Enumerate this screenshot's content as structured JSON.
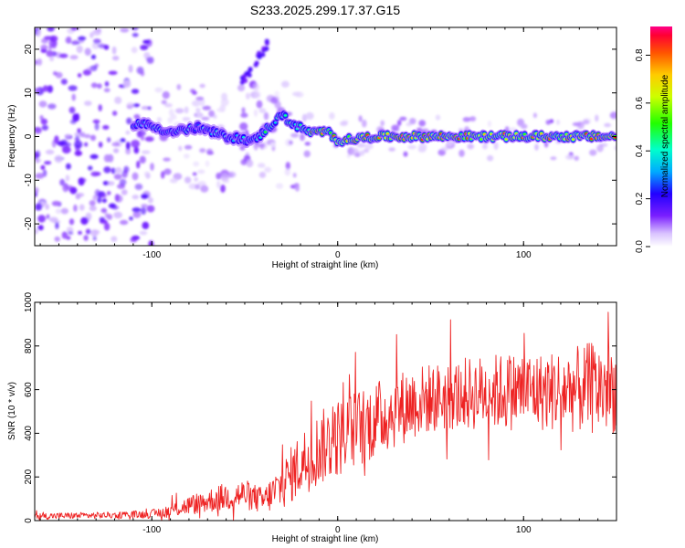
{
  "chart_data": [
    {
      "type": "heatmap",
      "title": "S233.2025.299.17.37.G15",
      "xlabel": "Height of straight line (km)",
      "ylabel": "Frequency (Hz)",
      "xlim": [
        -163,
        150
      ],
      "ylim": [
        -25,
        25
      ],
      "xticks": [
        -100,
        0,
        100
      ],
      "yticks": [
        -20,
        -10,
        0,
        10,
        20
      ],
      "colorbar": {
        "label": "Normalized spectral amplitude",
        "range": [
          0,
          0.92
        ],
        "ticks": [
          0.0,
          0.2,
          0.4,
          0.6,
          0.8
        ]
      },
      "ridge": {
        "description_points_x": [
          -105,
          -90,
          -75,
          -60,
          -45,
          -35,
          -30,
          -25,
          -15,
          -5,
          0,
          20,
          40,
          60,
          80,
          100,
          120,
          150
        ],
        "description_points_freq": [
          3,
          1,
          2,
          0,
          -1,
          3,
          5,
          3,
          1,
          1,
          -1,
          0,
          0,
          0,
          0,
          0,
          0,
          0
        ],
        "peak_amplitude_region_x": [
          -15,
          150
        ]
      }
    },
    {
      "type": "line",
      "title": "",
      "xlabel": "Height of straight line (km)",
      "ylabel": "SNR (10 * v/v)",
      "xlim": [
        -163,
        150
      ],
      "ylim": [
        0,
        1000
      ],
      "xticks": [
        -100,
        0,
        100
      ],
      "yticks": [
        0,
        200,
        400,
        600,
        800,
        1000
      ],
      "series": [
        {
          "name": "SNR",
          "color": "#ee2222",
          "envelope_x": [
            -163,
            -120,
            -100,
            -90,
            -80,
            -70,
            -60,
            -50,
            -40,
            -30,
            -20,
            -10,
            0,
            10,
            20,
            30,
            40,
            50,
            60,
            70,
            80,
            90,
            100,
            110,
            120,
            130,
            140,
            150
          ],
          "envelope_mean": [
            20,
            25,
            30,
            45,
            70,
            90,
            110,
            120,
            90,
            160,
            260,
            330,
            380,
            420,
            460,
            500,
            540,
            560,
            570,
            580,
            590,
            590,
            600,
            590,
            600,
            600,
            610,
            600
          ],
          "envelope_spread": [
            15,
            15,
            20,
            30,
            45,
            55,
            65,
            70,
            60,
            110,
            150,
            170,
            180,
            180,
            180,
            170,
            170,
            160,
            160,
            170,
            170,
            180,
            180,
            180,
            190,
            200,
            220,
            200
          ]
        }
      ]
    }
  ]
}
